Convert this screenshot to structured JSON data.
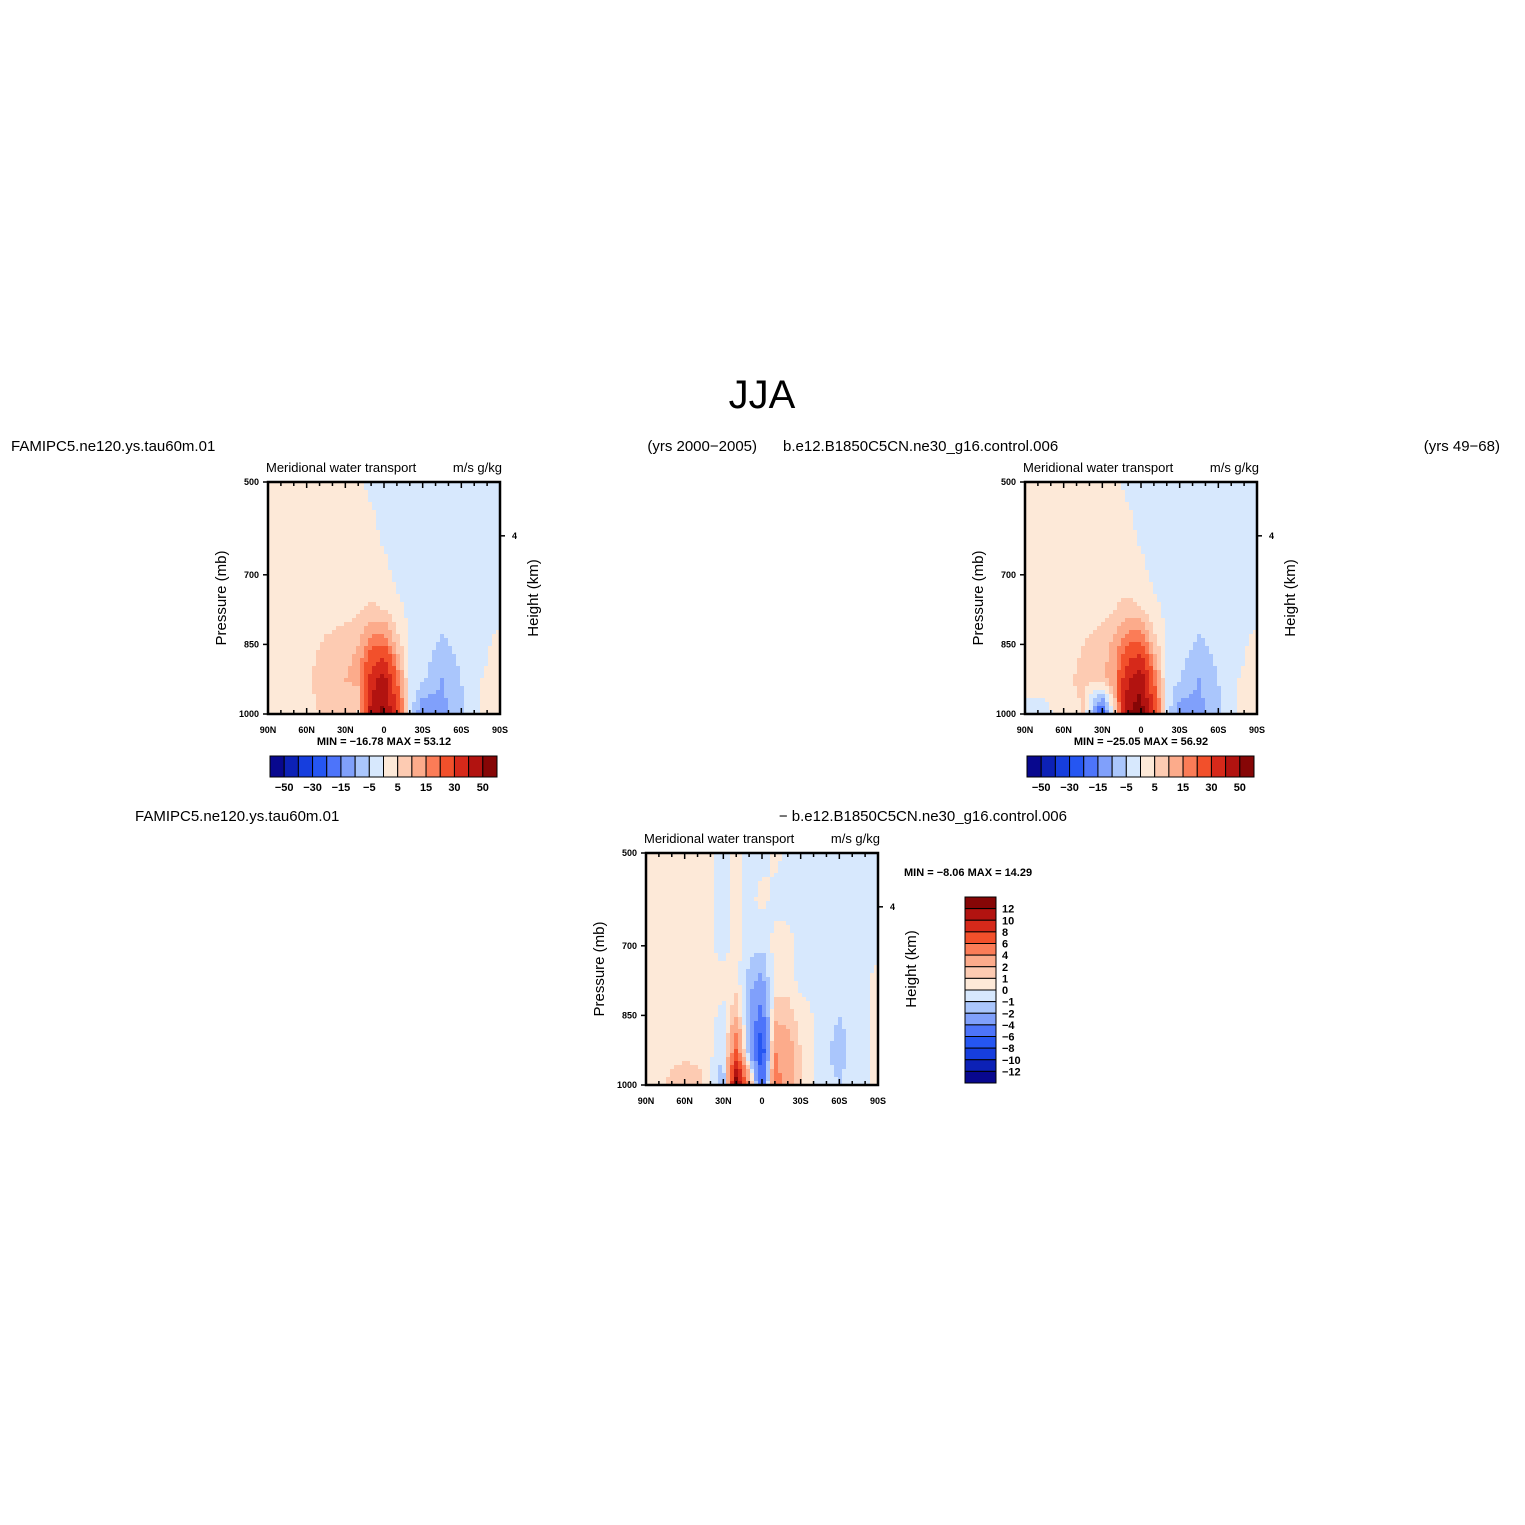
{
  "title": "JJA",
  "panels": [
    {
      "case_name": "FAMIPC5.ne120.ys.tau60m.01",
      "years": "(yrs 2000−2005)",
      "plot_title": "Meridional water transport",
      "units": "m/s g/kg",
      "stats": "MIN = −16.78   MAX =  53.12",
      "ylabel": "Pressure (mb)",
      "ylabel_right": "Height (km)"
    },
    {
      "case_name": "b.e12.B1850C5CN.ne30_g16.control.006",
      "years": "(yrs 49−68)",
      "plot_title": "Meridional water transport",
      "units": "m/s g/kg",
      "stats": "MIN = −25.05   MAX =  56.92",
      "ylabel": "Pressure (mb)",
      "ylabel_right": "Height (km)"
    },
    {
      "case_name": "FAMIPC5.ne120.ys.tau60m.01",
      "case_name_2": "− b.e12.B1850C5CN.ne30_g16.control.006",
      "plot_title": "Meridional water transport",
      "units": "m/s g/kg",
      "stats": "MIN =   −8.06   MAX =   14.29",
      "ylabel": "Pressure (mb)",
      "ylabel_right": "Height (km)"
    }
  ],
  "chart_data": [
    {
      "type": "heatmap",
      "title": "Meridional water transport",
      "units": "m/s g/kg",
      "x_ticks": [
        "90N",
        "60N",
        "30N",
        "0",
        "30S",
        "60S",
        "90S"
      ],
      "x_tick_lat": [
        90,
        60,
        30,
        0,
        -30,
        -60,
        -90
      ],
      "y_ticks": [
        500,
        700,
        850,
        1000
      ],
      "ylim": [
        1000,
        500
      ],
      "right_axis_ticks": [
        {
          "label": "4",
          "pressure": 616
        }
      ],
      "min": -16.78,
      "max": 53.12,
      "contour_levels": [
        -50,
        -40,
        -30,
        -20,
        -15,
        -10,
        -5,
        0,
        5,
        10,
        15,
        20,
        30,
        40,
        50
      ],
      "colorbar_labels": [
        "−50",
        "−30",
        "−15",
        "−5",
        "5",
        "15",
        "30",
        "50"
      ],
      "field": {
        "lat": [
          90,
          75,
          60,
          45,
          30,
          20,
          10,
          0,
          -10,
          -20,
          -30,
          -45,
          -60,
          -75,
          -90
        ],
        "pressure": [
          500,
          600,
          700,
          775,
          850,
          925,
          1000
        ],
        "values": [
          [
            1,
            1,
            1,
            1,
            1,
            1,
            -1,
            -1,
            -1,
            -1,
            -1,
            -1,
            -1,
            -1,
            -1
          ],
          [
            1,
            1,
            1,
            1,
            1,
            1,
            1,
            -1,
            -1,
            -1,
            -1,
            -1,
            -1,
            -1,
            -1
          ],
          [
            1,
            1,
            1,
            1,
            1,
            2,
            2,
            1,
            -1,
            -1,
            -1,
            -1,
            -1,
            -1,
            -1
          ],
          [
            1,
            1,
            1,
            2,
            3,
            4,
            6,
            5,
            1,
            -1,
            -1,
            -3,
            -2,
            -1,
            -1
          ],
          [
            1,
            1,
            3,
            6,
            8,
            10,
            18,
            20,
            8,
            -1,
            -2,
            -6,
            -3,
            -1,
            1
          ],
          [
            1,
            1,
            4,
            8,
            10,
            12,
            35,
            45,
            20,
            -1,
            -4,
            -10,
            -5,
            0,
            1
          ],
          [
            0,
            1,
            3,
            6,
            6,
            4,
            45,
            53,
            30,
            -2,
            -16,
            -12,
            -6,
            0,
            0
          ]
        ]
      }
    },
    {
      "type": "heatmap",
      "title": "Meridional water transport",
      "units": "m/s g/kg",
      "x_ticks": [
        "90N",
        "60N",
        "30N",
        "0",
        "30S",
        "60S",
        "90S"
      ],
      "x_tick_lat": [
        90,
        60,
        30,
        0,
        -30,
        -60,
        -90
      ],
      "y_ticks": [
        500,
        700,
        850,
        1000
      ],
      "ylim": [
        1000,
        500
      ],
      "right_axis_ticks": [
        {
          "label": "4",
          "pressure": 616
        }
      ],
      "min": -25.05,
      "max": 56.92,
      "contour_levels": [
        -50,
        -40,
        -30,
        -20,
        -15,
        -10,
        -5,
        0,
        5,
        10,
        15,
        20,
        30,
        40,
        50
      ],
      "colorbar_labels": [
        "−50",
        "−30",
        "−15",
        "−5",
        "5",
        "15",
        "30",
        "50"
      ],
      "field": {
        "lat": [
          90,
          75,
          60,
          45,
          30,
          20,
          10,
          0,
          -10,
          -20,
          -30,
          -45,
          -60,
          -75,
          -90
        ],
        "pressure": [
          500,
          600,
          700,
          775,
          850,
          925,
          1000
        ],
        "values": [
          [
            1,
            1,
            1,
            1,
            1,
            1,
            -1,
            -1,
            -1,
            -1,
            -1,
            -1,
            -1,
            -1,
            -1
          ],
          [
            1,
            1,
            1,
            1,
            1,
            1,
            1,
            -1,
            -1,
            -1,
            -1,
            -1,
            -1,
            -1,
            -1
          ],
          [
            1,
            1,
            1,
            1,
            1,
            2,
            2,
            1,
            -1,
            -1,
            -1,
            -1,
            -1,
            -1,
            -1
          ],
          [
            1,
            1,
            1,
            2,
            3,
            5,
            7,
            5,
            1,
            -1,
            -1,
            -3,
            -2,
            -1,
            -1
          ],
          [
            1,
            1,
            3,
            5,
            8,
            12,
            20,
            22,
            8,
            -1,
            -2,
            -6,
            -3,
            -1,
            1
          ],
          [
            1,
            2,
            4,
            6,
            8,
            15,
            40,
            48,
            20,
            -1,
            -5,
            -10,
            -5,
            0,
            1
          ],
          [
            -1,
            -2,
            3,
            5,
            -25,
            6,
            50,
            56,
            30,
            -2,
            -14,
            -12,
            -6,
            0,
            0
          ]
        ]
      }
    },
    {
      "type": "heatmap",
      "title": "Meridional water transport",
      "units": "m/s g/kg",
      "x_ticks": [
        "90N",
        "60N",
        "30N",
        "0",
        "30S",
        "60S",
        "90S"
      ],
      "x_tick_lat": [
        90,
        60,
        30,
        0,
        -30,
        -60,
        -90
      ],
      "y_ticks": [
        500,
        700,
        850,
        1000
      ],
      "ylim": [
        1000,
        500
      ],
      "right_axis_ticks": [
        {
          "label": "4",
          "pressure": 616
        }
      ],
      "min": -8.06,
      "max": 14.29,
      "contour_levels": [
        -12,
        -10,
        -8,
        -6,
        -4,
        -2,
        -1,
        0,
        1,
        2,
        4,
        6,
        8,
        10,
        12
      ],
      "colorbar_labels": [
        "12",
        "10",
        "8",
        "6",
        "4",
        "2",
        "1",
        "0",
        "−1",
        "−2",
        "−4",
        "−6",
        "−8",
        "−10",
        "−12"
      ],
      "field": {
        "lat": [
          90,
          75,
          60,
          45,
          30,
          20,
          10,
          0,
          -10,
          -20,
          -30,
          -45,
          -60,
          -75,
          -90
        ],
        "pressure": [
          500,
          600,
          700,
          775,
          850,
          925,
          1000
        ],
        "values": [
          [
            0.3,
            0.3,
            0.3,
            0.3,
            -0.3,
            0.3,
            -0.3,
            -0.3,
            0.3,
            -0.3,
            -0.3,
            -0.3,
            -0.3,
            -0.3,
            -0.3
          ],
          [
            0.3,
            0.3,
            0.3,
            0.3,
            -0.3,
            0.3,
            -0.3,
            0.3,
            -0.3,
            -0.3,
            -0.3,
            -0.3,
            -0.3,
            -0.3,
            -0.3
          ],
          [
            0.3,
            0.3,
            0.3,
            0.3,
            -0.3,
            0.3,
            -0.5,
            -0.8,
            0.3,
            0.3,
            -0.3,
            -0.3,
            -0.3,
            -0.3,
            -0.3
          ],
          [
            0.3,
            0.3,
            0.3,
            0.3,
            0.3,
            0.5,
            -1.5,
            -2.5,
            0.5,
            0.5,
            -0.3,
            -0.3,
            -0.3,
            -0.3,
            0.3
          ],
          [
            0.3,
            0.3,
            0.3,
            0.5,
            -0.3,
            2,
            -2,
            -5,
            1.5,
            1.5,
            0.5,
            -0.3,
            -1,
            -0.3,
            0.3
          ],
          [
            0.3,
            0.5,
            0.5,
            0.8,
            -1,
            6,
            -2.5,
            -8,
            4,
            3,
            1,
            -0.5,
            -1.5,
            -0.3,
            0.3
          ],
          [
            0.3,
            1,
            2,
            1,
            -2,
            14,
            4,
            -6,
            5,
            3,
            1,
            -0.5,
            -1,
            -0.3,
            0.3
          ]
        ]
      }
    }
  ],
  "palette": [
    "#08088e",
    "#0c21b6",
    "#163ede",
    "#2556f2",
    "#4d74fa",
    "#80a0fb",
    "#aac6fc",
    "#d7e8fd",
    "#fde9d8",
    "#fdcbb2",
    "#fcab8b",
    "#fb7c57",
    "#f2502b",
    "#d6291a",
    "#b21310",
    "#860606"
  ]
}
